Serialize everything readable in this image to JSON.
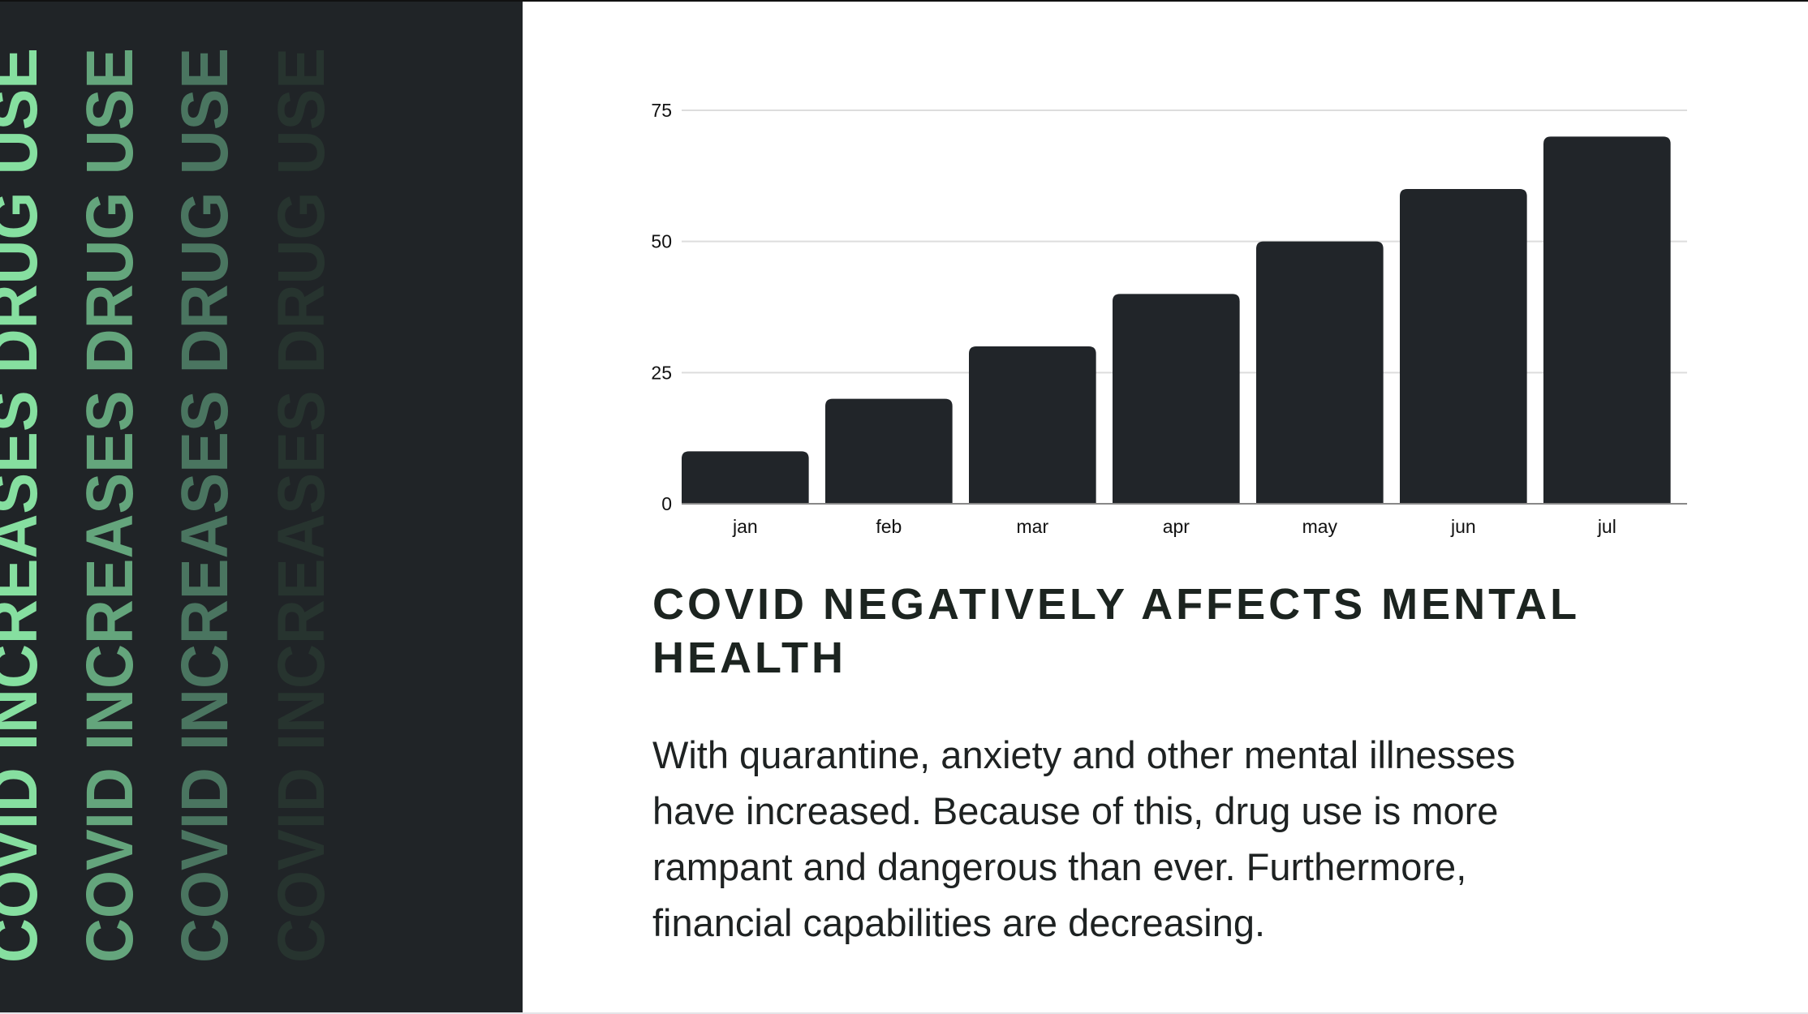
{
  "side_panel": {
    "repeated_title": "COVID INCREASES DRUG USE",
    "colors": [
      "#86dfa0",
      "#64a57c",
      "#4a7560",
      "#27342f"
    ],
    "background": "#202427"
  },
  "chart_data": {
    "type": "bar",
    "categories": [
      "jan",
      "feb",
      "mar",
      "apr",
      "may",
      "jun",
      "jul"
    ],
    "values": [
      10,
      20,
      30,
      40,
      50,
      60,
      70
    ],
    "title": "",
    "xlabel": "",
    "ylabel": "",
    "ylim": [
      0,
      75
    ],
    "yticks": [
      0,
      25,
      50,
      75
    ],
    "grid": true,
    "bar_color": "#212529"
  },
  "section": {
    "heading": "COVID NEGATIVELY AFFECTS MENTAL HEALTH",
    "body_lines": [
      "With quarantine, anxiety and other mental illnesses",
      "have increased. Because of this, drug use is more",
      "rampant and dangerous than ever. Furthermore,",
      "financial capabilities are decreasing."
    ]
  }
}
